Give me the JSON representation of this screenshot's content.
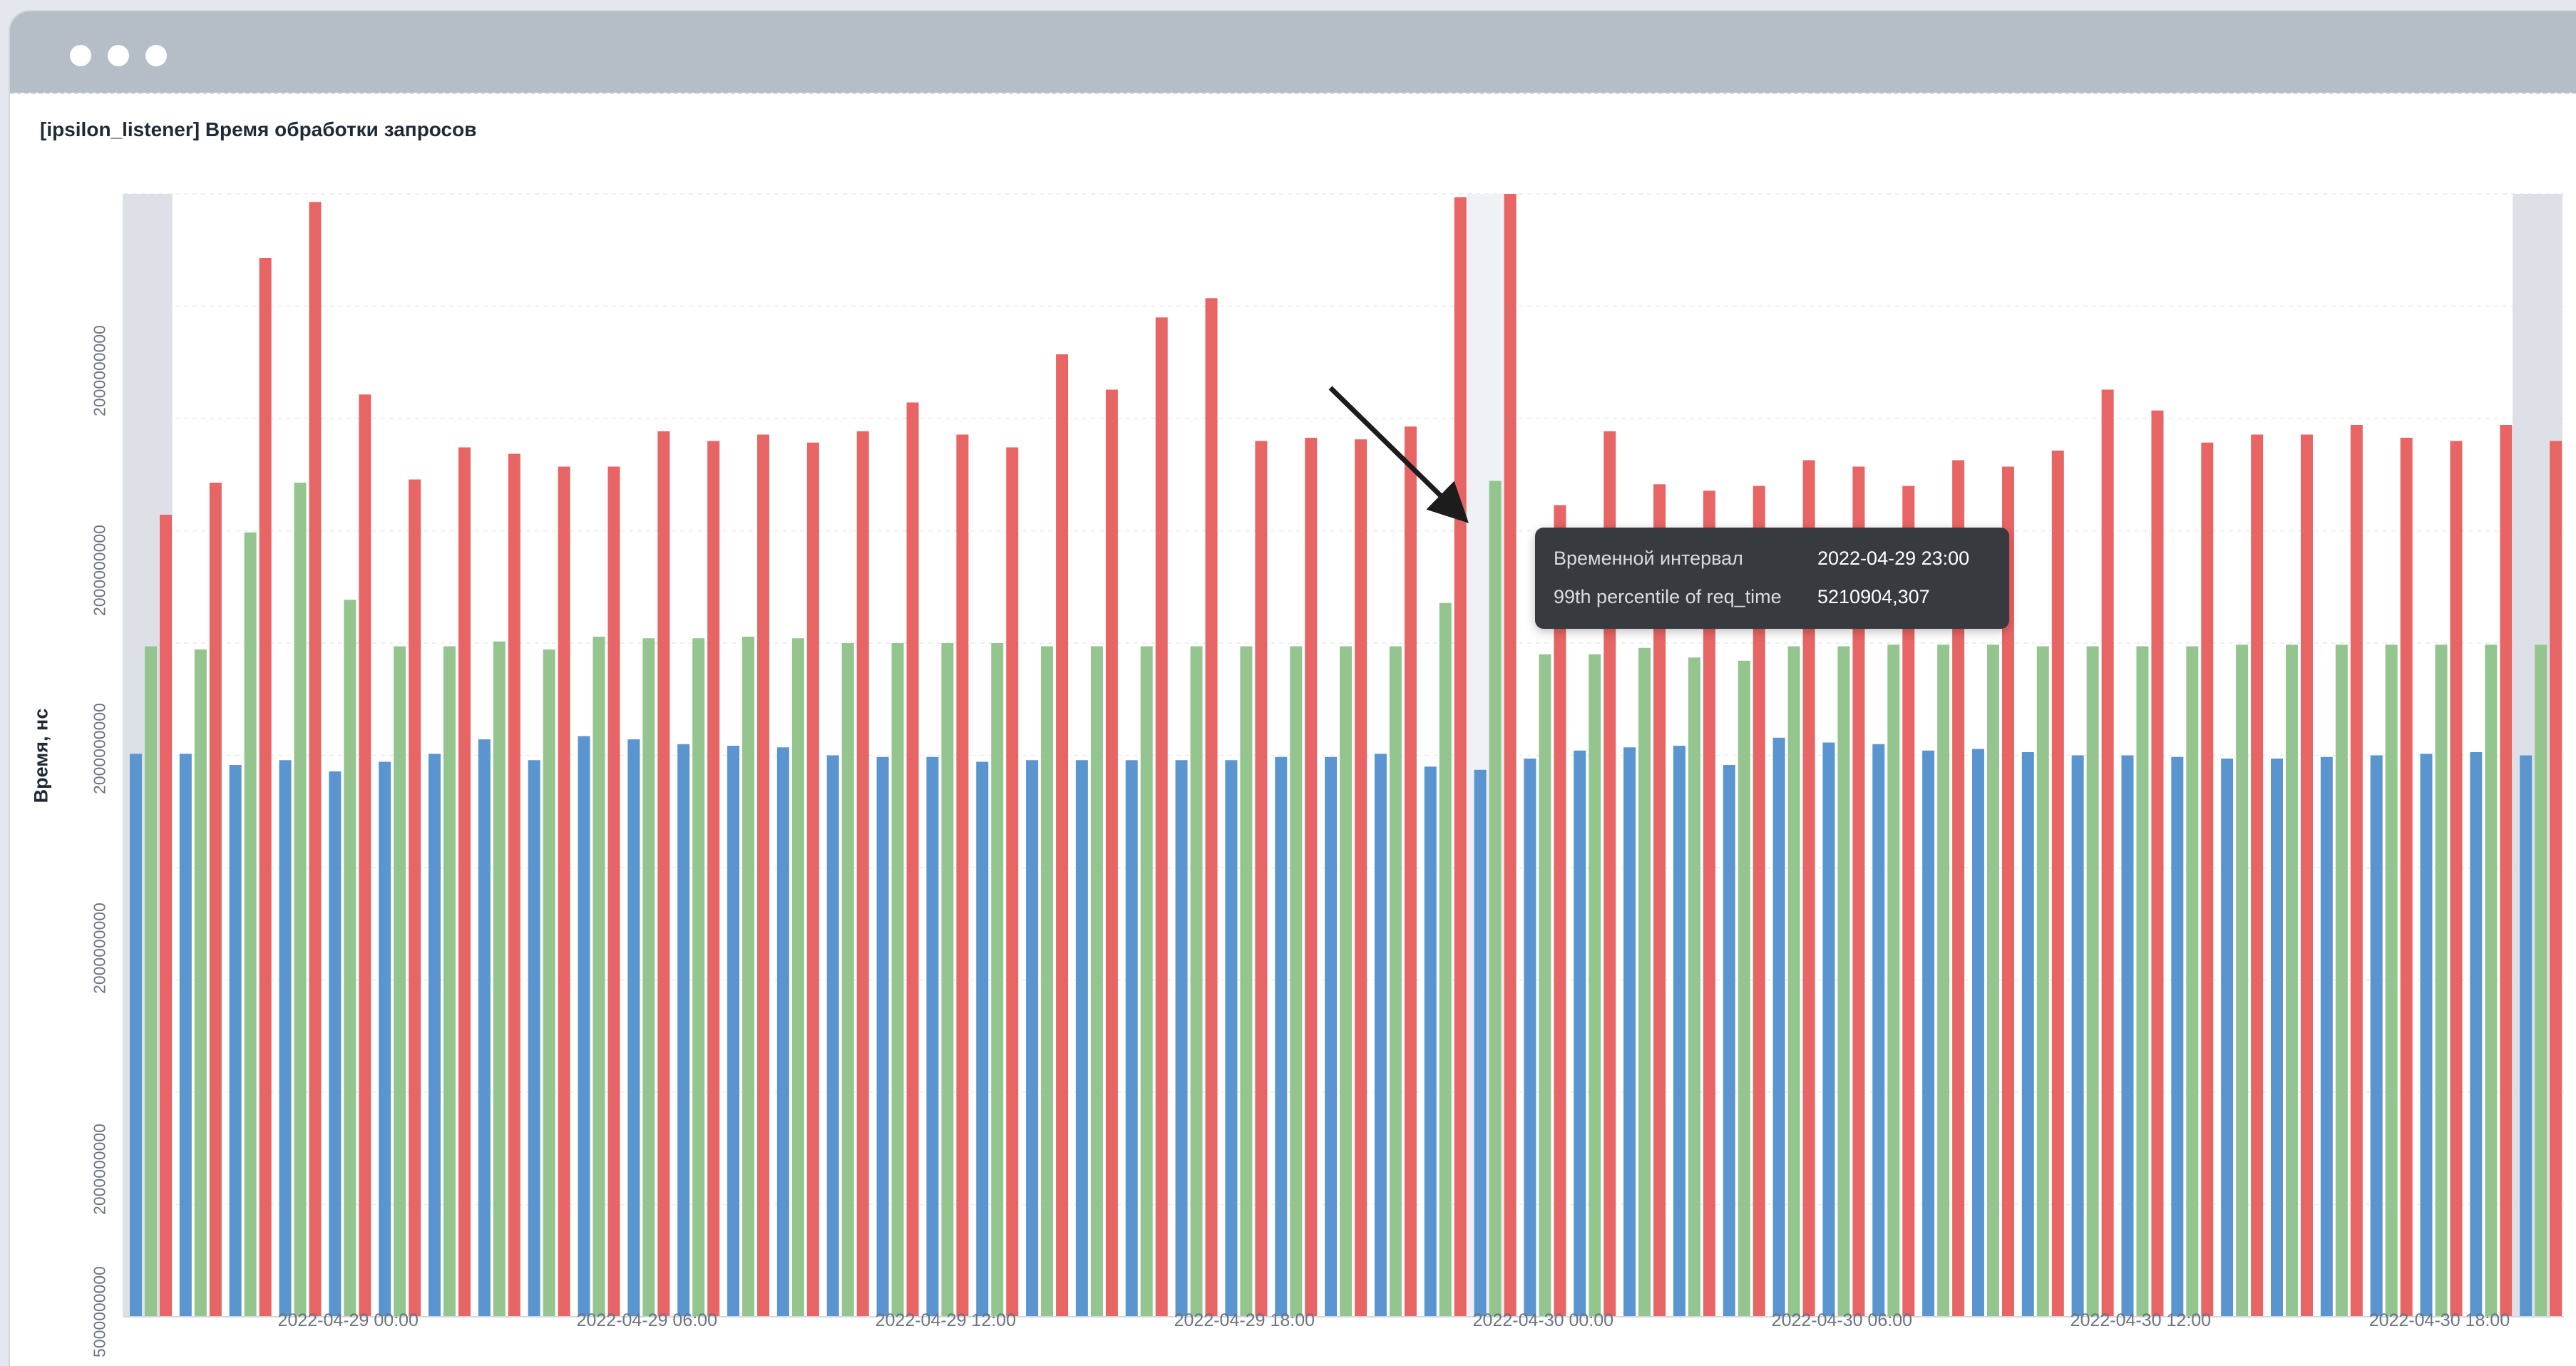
{
  "window": {
    "controls": [
      "close",
      "minimize",
      "maximize"
    ]
  },
  "panel": {
    "title": "[ipsilon_listener] Время обработки запросов"
  },
  "tooltip": {
    "rows": [
      {
        "key": "Временной интервал",
        "value": "2022-04-29 23:00"
      },
      {
        "key": "99th percentile of req_time",
        "value": "5210904,307"
      }
    ]
  },
  "chart_data": {
    "type": "bar",
    "title": "[ipsilon_listener] Время обработки запросов",
    "ylabel": "Время, нс",
    "xlabel": "",
    "y_ticks_visible": [
      "5000000000",
      "2000000000",
      "2000000000",
      "2000000000",
      "2000000000",
      "2000000000"
    ],
    "x_tick_labels": [
      "2022-04-29 00:00",
      "2022-04-29 06:00",
      "2022-04-29 12:00",
      "2022-04-29 18:00",
      "2022-04-30 00:00",
      "2022-04-30 06:00",
      "2022-04-30 12:00",
      "2022-04-30 18:00"
    ],
    "x": [
      "2022-04-28 20:00",
      "2022-04-28 21:00",
      "2022-04-28 22:00",
      "2022-04-28 23:00",
      "2022-04-29 00:00",
      "2022-04-29 01:00",
      "2022-04-29 02:00",
      "2022-04-29 03:00",
      "2022-04-29 04:00",
      "2022-04-29 05:00",
      "2022-04-29 06:00",
      "2022-04-29 07:00",
      "2022-04-29 08:00",
      "2022-04-29 09:00",
      "2022-04-29 10:00",
      "2022-04-29 11:00",
      "2022-04-29 12:00",
      "2022-04-29 13:00",
      "2022-04-29 14:00",
      "2022-04-29 15:00",
      "2022-04-29 16:00",
      "2022-04-29 17:00",
      "2022-04-29 18:00",
      "2022-04-29 19:00",
      "2022-04-29 20:00",
      "2022-04-29 21:00",
      "2022-04-29 22:00",
      "2022-04-29 23:00",
      "2022-04-30 00:00",
      "2022-04-30 01:00",
      "2022-04-30 02:00",
      "2022-04-30 03:00",
      "2022-04-30 04:00",
      "2022-04-30 05:00",
      "2022-04-30 06:00",
      "2022-04-30 07:00",
      "2022-04-30 08:00",
      "2022-04-30 09:00",
      "2022-04-30 10:00",
      "2022-04-30 11:00",
      "2022-04-30 12:00",
      "2022-04-30 13:00",
      "2022-04-30 14:00",
      "2022-04-30 15:00",
      "2022-04-30 16:00",
      "2022-04-30 17:00",
      "2022-04-30 18:00",
      "2022-04-30 19:00",
      "2022-04-30 20:00"
    ],
    "ylim": [
      0,
      7000000
    ],
    "y_scale_note": "",
    "highlighted_x": [
      "2022-04-28 20:00",
      "2022-04-29 23:00",
      "2022-04-30 20:00"
    ],
    "series": [
      {
        "color": "#5a95d0",
        "values": [
          3510000,
          3510000,
          3440000,
          3470000,
          3400000,
          3460000,
          3510000,
          3600000,
          3470000,
          3620000,
          3600000,
          3570000,
          3560000,
          3550000,
          3500000,
          3490000,
          3490000,
          3460000,
          3470000,
          3470000,
          3470000,
          3470000,
          3470000,
          3490000,
          3490000,
          3510000,
          3430000,
          3410000,
          3480000,
          3530000,
          3550000,
          3560000,
          3440000,
          3610000,
          3580000,
          3570000,
          3530000,
          3540000,
          3520000,
          3500000,
          3500000,
          3490000,
          3480000,
          3480000,
          3490000,
          3500000,
          3510000,
          3520000,
          3500000
        ]
      },
      {
        "color": "#94c58e",
        "values": [
          4180000,
          4160000,
          4890000,
          5200000,
          4470000,
          4180000,
          4180000,
          4210000,
          4160000,
          4240000,
          4230000,
          4230000,
          4240000,
          4230000,
          4200000,
          4200000,
          4200000,
          4200000,
          4180000,
          4180000,
          4180000,
          4180000,
          4180000,
          4180000,
          4180000,
          4180000,
          4450000,
          5210904,
          4130000,
          4130000,
          4170000,
          4110000,
          4090000,
          4180000,
          4180000,
          4190000,
          4190000,
          4190000,
          4180000,
          4180000,
          4180000,
          4180000,
          4190000,
          4190000,
          4190000,
          4190000,
          4190000,
          4190000,
          4190000
        ]
      },
      {
        "color": "#e86565",
        "values": [
          5000000,
          5200000,
          6600000,
          6950000,
          5750000,
          5220000,
          5420000,
          5380000,
          5300000,
          5300000,
          5520000,
          5460000,
          5500000,
          5450000,
          5520000,
          5700000,
          5500000,
          5420000,
          6000000,
          5780000,
          6230000,
          6350000,
          5460000,
          5480000,
          5470000,
          5550000,
          6980000,
          7000000,
          5060000,
          5520000,
          5190000,
          5150000,
          5180000,
          5340000,
          5300000,
          5180000,
          5340000,
          5300000,
          5400000,
          5780000,
          5650000,
          5450000,
          5500000,
          5500000,
          5560000,
          5480000,
          5460000,
          5560000,
          5460000
        ]
      }
    ],
    "legend": "none",
    "grid": true
  }
}
